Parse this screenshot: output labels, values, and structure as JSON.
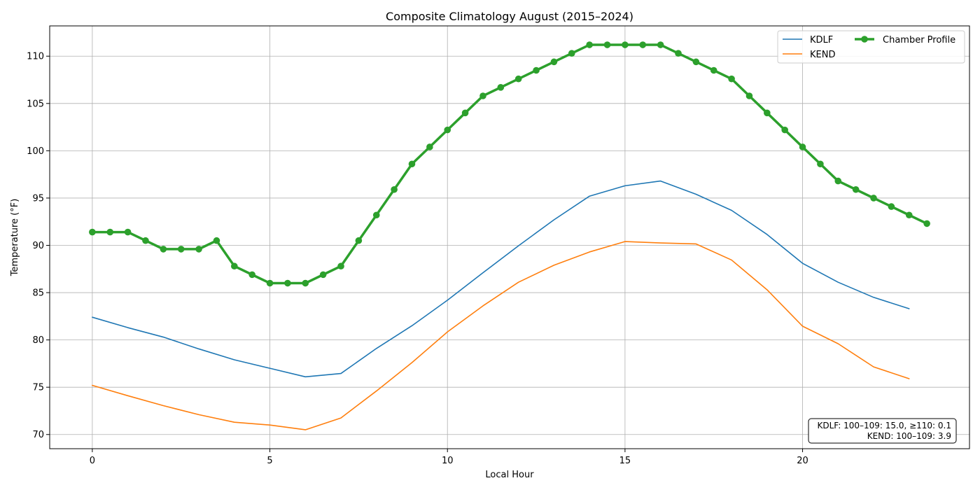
{
  "chart_data": {
    "type": "line",
    "title": "Composite Climatology August (2015–2024)",
    "xlabel": "Local Hour",
    "ylabel": "Temperature (°F)",
    "xlim": [
      -1.2,
      24.7
    ],
    "ylim": [
      68.5,
      113.2
    ],
    "xticks": [
      0,
      5,
      10,
      15,
      20
    ],
    "yticks": [
      70,
      75,
      80,
      85,
      90,
      95,
      100,
      105,
      110
    ],
    "grid": true,
    "legend_position": "top-right",
    "series": [
      {
        "name": "KDLF",
        "color": "#1f77b4",
        "marker": false,
        "x": [
          0,
          1,
          2,
          3,
          4,
          5,
          6,
          7,
          8,
          9,
          10,
          11,
          12,
          13,
          14,
          15,
          16,
          17,
          18,
          19,
          20,
          21,
          22,
          23
        ],
        "y": [
          82.4,
          81.3,
          80.3,
          79.05,
          77.9,
          77.0,
          76.1,
          76.45,
          79.1,
          81.5,
          84.2,
          87.1,
          89.95,
          92.7,
          95.2,
          96.3,
          96.8,
          95.4,
          93.7,
          91.15,
          88.1,
          86.1,
          84.5,
          83.3
        ]
      },
      {
        "name": "KEND",
        "color": "#ff7f0e",
        "marker": false,
        "x": [
          0,
          1,
          2,
          3,
          4,
          5,
          6,
          7,
          8,
          9,
          10,
          11,
          12,
          13,
          14,
          15,
          16,
          17,
          18,
          19,
          20,
          21,
          22,
          23
        ],
        "y": [
          75.2,
          74.1,
          73.05,
          72.1,
          71.3,
          71.0,
          70.5,
          71.75,
          74.6,
          77.6,
          80.85,
          83.6,
          86.1,
          87.9,
          89.3,
          90.4,
          90.25,
          90.15,
          88.45,
          85.3,
          81.45,
          79.6,
          77.15,
          75.9
        ]
      },
      {
        "name": "Chamber Profile",
        "color": "#2ca02c",
        "marker": true,
        "x": [
          0,
          0.5,
          1,
          1.5,
          2,
          2.5,
          3,
          3.5,
          4,
          4.5,
          5,
          5.5,
          6,
          6.5,
          7,
          7.5,
          8,
          8.5,
          9,
          9.5,
          10,
          10.5,
          11,
          11.5,
          12,
          12.5,
          13,
          13.5,
          14,
          14.5,
          15,
          15.5,
          16,
          16.5,
          17,
          17.5,
          18,
          18.5,
          19,
          19.5,
          20,
          20.5,
          21,
          21.5,
          22,
          22.5,
          23,
          23.5
        ],
        "y": [
          91.4,
          91.4,
          91.4,
          90.5,
          89.6,
          89.6,
          89.6,
          90.5,
          87.8,
          86.9,
          86.0,
          86.0,
          86.0,
          86.9,
          87.8,
          90.5,
          93.2,
          95.9,
          98.6,
          100.4,
          102.2,
          104.0,
          105.8,
          106.7,
          107.6,
          108.5,
          109.4,
          110.3,
          111.2,
          111.2,
          111.2,
          111.2,
          111.2,
          110.3,
          109.4,
          108.5,
          107.6,
          105.8,
          104.0,
          102.2,
          100.4,
          98.6,
          96.8,
          95.9,
          95.0,
          94.1,
          93.2,
          92.3
        ]
      }
    ],
    "annotation": {
      "line1": "KDLF: 100–109: 15.0, ≥110: 0.1",
      "line2": "KEND: 100–109: 3.9"
    }
  }
}
